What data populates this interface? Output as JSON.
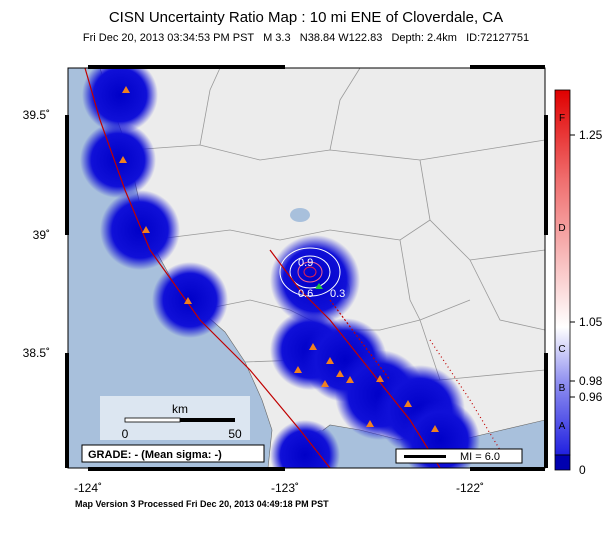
{
  "header": {
    "title": "CISN Uncertainty Ratio Map : 10 mi ENE of Cloverdale, CA",
    "subtitle": "Fri Dec 20, 2013 03:34:53 PM PST   M 3.3   N38.84 W122.83   Depth: 2.4km   ID:72127751"
  },
  "map": {
    "lat_labels": [
      "39.5˚",
      "39˚",
      "38.5˚"
    ],
    "lon_labels": [
      "-124˚",
      "-123˚",
      "-122˚"
    ],
    "contour_labels": [
      "0.9",
      "0.6",
      "0.3"
    ],
    "scale": {
      "unit": "km",
      "labels": [
        "0",
        "50"
      ]
    },
    "grade": "GRADE: - (Mean sigma: -)",
    "intensity": "MI = 6.0"
  },
  "colorbar": {
    "grades": [
      "F",
      "D",
      "C",
      "B",
      "A"
    ],
    "ticks": [
      "1.25",
      "1.05",
      "0.98",
      "0.96",
      "0"
    ]
  },
  "footer": "Map Version 3 Processed Fri Dec 20, 2013 04:49:18 PM PST"
}
